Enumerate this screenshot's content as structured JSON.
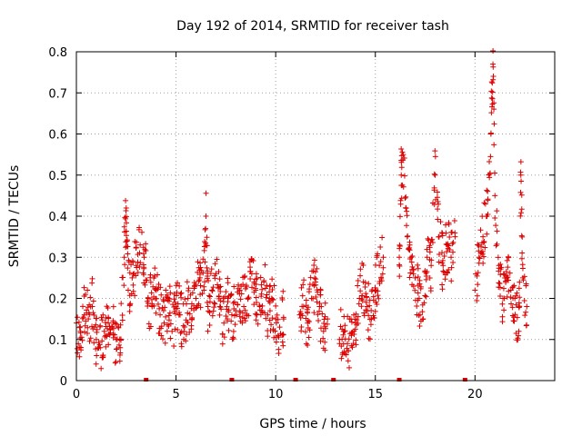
{
  "chart_data": {
    "type": "scatter",
    "title": "Day 192 of 2014, SRMTID for receiver tash",
    "xlabel": "GPS time / hours",
    "ylabel": "SRMTID / TECUs",
    "xlim": [
      0,
      24
    ],
    "ylim": [
      0,
      0.8
    ],
    "xticks": [
      0,
      5,
      10,
      15,
      20
    ],
    "xtick_labels": [
      "0",
      "5",
      "10",
      "15",
      "20"
    ],
    "yticks": [
      0,
      0.1,
      0.2,
      0.3,
      0.4,
      0.5,
      0.6,
      0.7,
      0.8
    ],
    "ytick_labels": [
      "0",
      "0.1",
      "0.2",
      "0.3",
      "0.4",
      "0.5",
      "0.6",
      "0.7",
      "0.8"
    ],
    "grid": true,
    "marker": "+",
    "color": "#dd0000",
    "series": [
      {
        "name": "SRMTID",
        "x": [
          0.0,
          0.2,
          0.4,
          0.6,
          0.8,
          1.0,
          1.2,
          1.4,
          1.6,
          1.8,
          2.0,
          2.2,
          2.4,
          2.5,
          2.6,
          2.8,
          3.0,
          3.2,
          3.4,
          3.6,
          3.8,
          4.0,
          4.2,
          4.4,
          4.6,
          4.8,
          5.0,
          5.2,
          5.4,
          5.6,
          5.8,
          6.0,
          6.2,
          6.4,
          6.5,
          6.6,
          6.8,
          7.0,
          7.2,
          7.4,
          7.6,
          7.8,
          8.0,
          8.2,
          8.4,
          8.6,
          8.8,
          9.0,
          9.2,
          9.4,
          9.6,
          9.8,
          10.0,
          10.2,
          10.4,
          11.2,
          11.4,
          11.6,
          11.8,
          12.0,
          12.2,
          12.4,
          12.6,
          13.2,
          13.4,
          13.6,
          13.8,
          14.0,
          14.2,
          14.4,
          14.6,
          14.8,
          15.0,
          15.2,
          15.4,
          16.2,
          16.3,
          16.4,
          16.6,
          16.8,
          17.0,
          17.2,
          17.4,
          17.6,
          17.8,
          18.0,
          18.2,
          18.4,
          18.6,
          18.8,
          19.0,
          20.0,
          20.2,
          20.4,
          20.6,
          20.8,
          20.9,
          21.0,
          21.2,
          21.4,
          21.6,
          21.8,
          22.0,
          22.2,
          22.3,
          22.4,
          22.6
        ],
        "y": [
          0.14,
          0.12,
          0.16,
          0.15,
          0.18,
          0.1,
          0.08,
          0.12,
          0.14,
          0.13,
          0.1,
          0.08,
          0.3,
          0.42,
          0.22,
          0.25,
          0.28,
          0.33,
          0.3,
          0.2,
          0.18,
          0.22,
          0.16,
          0.14,
          0.2,
          0.12,
          0.18,
          0.16,
          0.12,
          0.2,
          0.15,
          0.2,
          0.25,
          0.22,
          0.4,
          0.18,
          0.22,
          0.26,
          0.18,
          0.14,
          0.2,
          0.16,
          0.17,
          0.22,
          0.18,
          0.2,
          0.26,
          0.22,
          0.18,
          0.24,
          0.16,
          0.2,
          0.15,
          0.13,
          0.15,
          0.16,
          0.18,
          0.14,
          0.2,
          0.24,
          0.18,
          0.12,
          0.15,
          0.1,
          0.12,
          0.09,
          0.11,
          0.14,
          0.2,
          0.24,
          0.18,
          0.15,
          0.22,
          0.28,
          0.3,
          0.3,
          0.5,
          0.55,
          0.35,
          0.3,
          0.25,
          0.2,
          0.15,
          0.3,
          0.28,
          0.5,
          0.35,
          0.28,
          0.33,
          0.3,
          0.35,
          0.22,
          0.3,
          0.35,
          0.4,
          0.6,
          0.77,
          0.45,
          0.28,
          0.2,
          0.25,
          0.22,
          0.2,
          0.12,
          0.5,
          0.25,
          0.18
        ],
        "zero_markers_x": [
          3.5,
          7.8,
          11.0,
          12.9,
          16.2,
          19.5
        ]
      }
    ]
  }
}
